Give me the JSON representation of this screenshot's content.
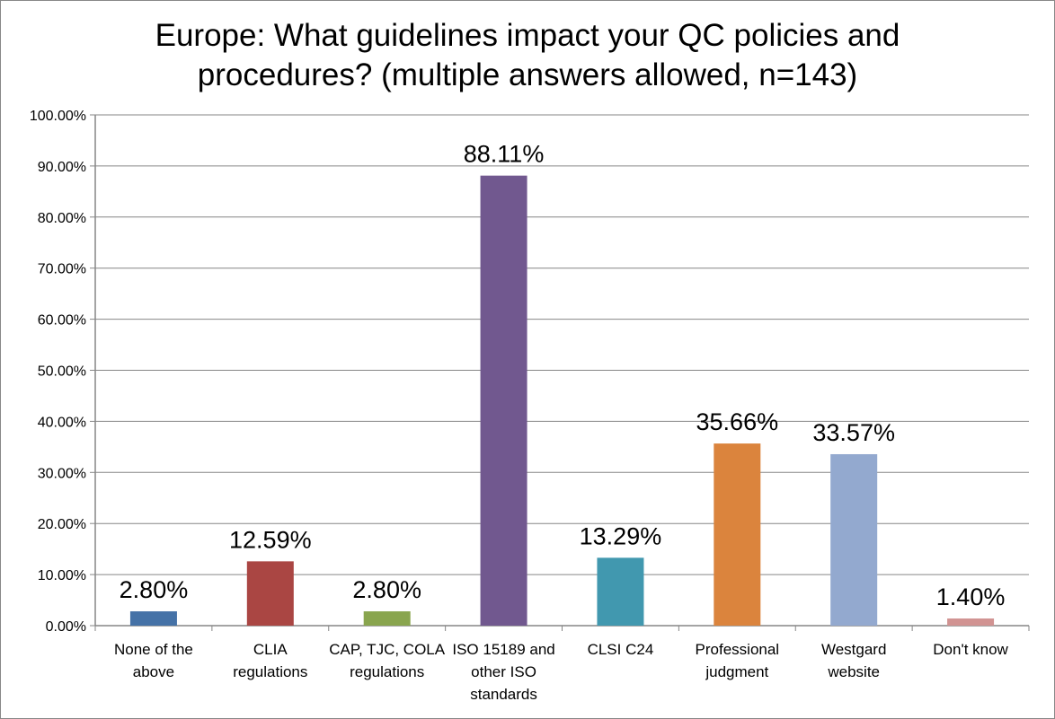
{
  "chart_data": {
    "type": "bar",
    "title": "Europe: What guidelines impact your QC policies and procedures? (multiple answers allowed, n=143)",
    "title_lines": [
      "Europe: What guidelines impact your QC policies and",
      "procedures? (multiple answers allowed, n=143)"
    ],
    "categories": [
      [
        "None of the",
        "above"
      ],
      [
        "CLIA",
        "regulations"
      ],
      [
        "CAP, TJC, COLA",
        "regulations"
      ],
      [
        "ISO 15189 and",
        "other ISO",
        "standards"
      ],
      [
        "CLSI C24"
      ],
      [
        "Professional",
        "judgment"
      ],
      [
        "Westgard",
        "website"
      ],
      [
        "Don't know"
      ]
    ],
    "values": [
      2.8,
      12.59,
      2.8,
      88.11,
      13.29,
      35.66,
      33.57,
      1.4
    ],
    "data_labels": [
      "2.80%",
      "12.59%",
      "2.80%",
      "88.11%",
      "13.29%",
      "35.66%",
      "33.57%",
      "1.40%"
    ],
    "colors": [
      "#4572A7",
      "#AA4643",
      "#89A54E",
      "#71588F",
      "#4198AF",
      "#DB843D",
      "#93A9CF",
      "#D19392"
    ],
    "ylim": [
      0,
      100
    ],
    "yticks": [
      "0.00%",
      "10.00%",
      "20.00%",
      "30.00%",
      "40.00%",
      "50.00%",
      "60.00%",
      "70.00%",
      "80.00%",
      "90.00%",
      "100.00%"
    ],
    "grid": true,
    "legend": "none",
    "xlabel": "",
    "ylabel": ""
  }
}
